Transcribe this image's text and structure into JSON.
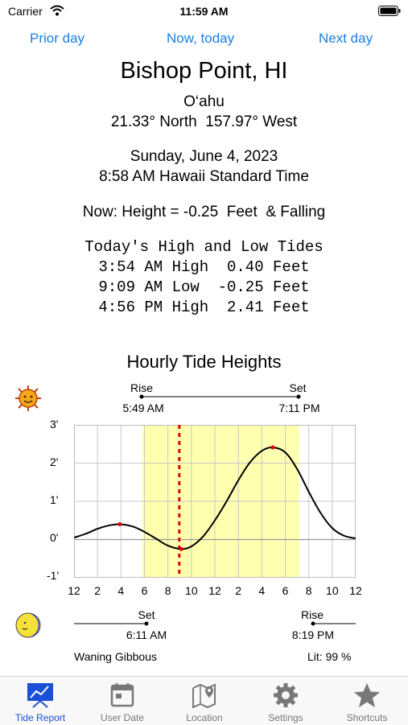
{
  "status": {
    "carrier": "Carrier",
    "time": "11:59 AM"
  },
  "nav": {
    "prior": "Prior day",
    "now": "Now, today",
    "next": "Next day"
  },
  "location": {
    "name": "Bishop Point, HI",
    "island": "O‘ahu",
    "coords": "21.33° North  157.97° West"
  },
  "date": {
    "day": "Sunday, June 4, 2023",
    "time": "8:58 AM Hawaii Standard Time"
  },
  "now_line": "Now: Height = -0.25  Feet  & Falling",
  "tides": {
    "header": "Today's High and Low Tides",
    "rows": [
      "3:54 AM High  0.40 Feet",
      "9:09 AM Low  -0.25 Feet",
      "4:56 PM High  2.41 Feet"
    ]
  },
  "chart_title": "Hourly Tide Heights",
  "sun": {
    "rise_label": "Rise",
    "rise_time": "5:49 AM",
    "set_label": "Set",
    "set_time": "7:11 PM",
    "icon": "sun-icon"
  },
  "moon": {
    "set_label": "Set",
    "set_time": "6:11 AM",
    "rise_label": "Rise",
    "rise_time": "8:19 PM",
    "phase": "Waning Gibbous",
    "lit": "Lit: 99 %",
    "icon": "moon-icon"
  },
  "colors": {
    "accent": "#1a7fe0",
    "daylight": "#ffffb0",
    "now_marker": "#e00000",
    "tab_active": "#1a4fd6"
  },
  "chart_data": {
    "type": "line",
    "x_ticks": [
      "12",
      "2",
      "4",
      "6",
      "8",
      "10",
      "12",
      "2",
      "4",
      "6",
      "8",
      "10",
      "12"
    ],
    "y_ticks": [
      "3'",
      "2'",
      "1'",
      "0'",
      "-1'"
    ],
    "ylim": [
      -1,
      3
    ],
    "xlim": [
      0,
      24
    ],
    "grid": true,
    "daylight_range": [
      5.82,
      19.18
    ],
    "now_hour": 8.97,
    "extrema": [
      {
        "hour": 3.9,
        "height": 0.4
      },
      {
        "hour": 9.15,
        "height": -0.25
      },
      {
        "hour": 16.93,
        "height": 2.41
      }
    ],
    "series": [
      {
        "x": [
          0,
          1,
          2,
          3,
          3.9,
          5,
          6,
          7,
          8,
          9.15,
          10,
          11,
          12,
          13,
          14,
          15,
          16,
          16.93,
          18,
          19,
          20,
          21,
          22,
          23,
          24
        ],
        "values": [
          0.05,
          0.15,
          0.28,
          0.37,
          0.4,
          0.34,
          0.2,
          0.02,
          -0.16,
          -0.25,
          -0.18,
          0.08,
          0.5,
          1.0,
          1.55,
          2.02,
          2.32,
          2.41,
          2.28,
          1.85,
          1.25,
          0.7,
          0.3,
          0.1,
          0.03
        ]
      }
    ]
  },
  "tabs": [
    {
      "label": "Tide Report",
      "icon": "tide-report-icon"
    },
    {
      "label": "User Date",
      "icon": "calendar-icon"
    },
    {
      "label": "Location",
      "icon": "map-icon"
    },
    {
      "label": "Settings",
      "icon": "gear-icon"
    },
    {
      "label": "Shortcuts",
      "icon": "star-icon"
    }
  ]
}
